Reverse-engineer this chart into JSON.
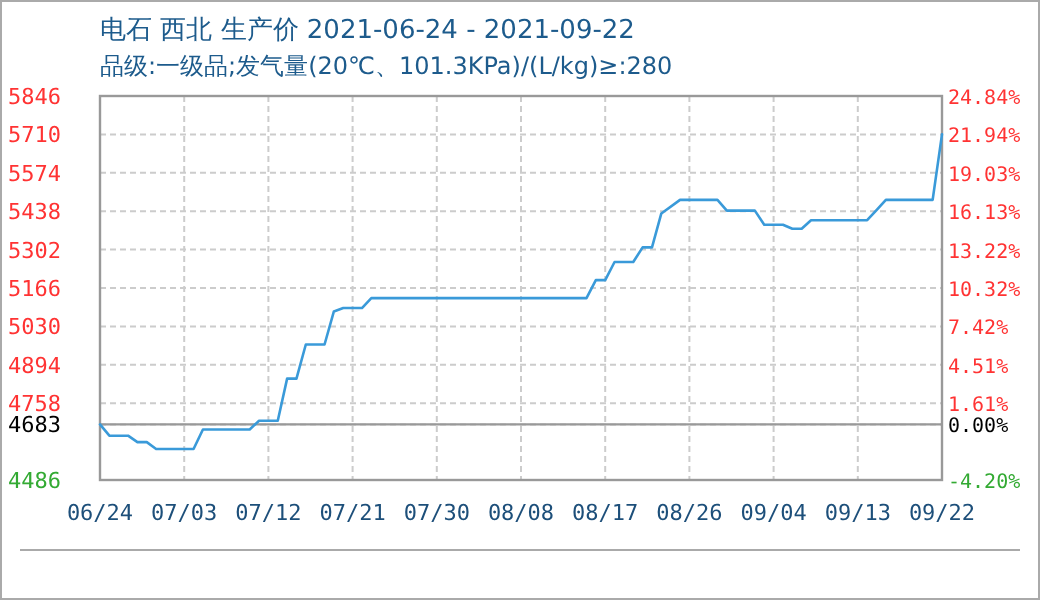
{
  "chart_data": {
    "type": "line",
    "title": "电石 西北 生产价 2021-06-24 - 2021-09-22",
    "subtitle": "品级:一级品;发气量(20℃、101.3KPa)/(L/kg)≥:280",
    "x": [
      "2021-06-24",
      "2021-06-25",
      "2021-06-27",
      "2021-06-28",
      "2021-06-29",
      "2021-06-30",
      "2021-07-04",
      "2021-07-05",
      "2021-07-10",
      "2021-07-11",
      "2021-07-13",
      "2021-07-14",
      "2021-07-15",
      "2021-07-16",
      "2021-07-18",
      "2021-07-19",
      "2021-07-20",
      "2021-07-22",
      "2021-07-23",
      "2021-08-15",
      "2021-08-16",
      "2021-08-17",
      "2021-08-18",
      "2021-08-20",
      "2021-08-21",
      "2021-08-22",
      "2021-08-23",
      "2021-08-25",
      "2021-08-29",
      "2021-08-30",
      "2021-09-02",
      "2021-09-03",
      "2021-09-05",
      "2021-09-06",
      "2021-09-07",
      "2021-09-08",
      "2021-09-14",
      "2021-09-15",
      "2021-09-16",
      "2021-09-21",
      "2021-09-22"
    ],
    "series": [
      {
        "color": "#3a9ad9",
        "values": [
          4683,
          4643,
          4643,
          4620,
          4620,
          4596,
          4596,
          4665,
          4665,
          4696,
          4696,
          4845,
          4845,
          4966,
          4966,
          5083,
          5095,
          5095,
          5130,
          5130,
          5194,
          5194,
          5258,
          5258,
          5310,
          5310,
          5430,
          5478,
          5478,
          5440,
          5440,
          5390,
          5390,
          5376,
          5376,
          5406,
          5406,
          5442,
          5478,
          5478,
          5710
        ]
      }
    ],
    "xlim": [
      "2021-06-24",
      "2021-09-22"
    ],
    "xticks": [
      {
        "value": "2021-06-24",
        "label": "06/24"
      },
      {
        "value": "2021-07-03",
        "label": "07/03"
      },
      {
        "value": "2021-07-12",
        "label": "07/12"
      },
      {
        "value": "2021-07-21",
        "label": "07/21"
      },
      {
        "value": "2021-07-30",
        "label": "07/30"
      },
      {
        "value": "2021-08-08",
        "label": "08/08"
      },
      {
        "value": "2021-08-17",
        "label": "08/17"
      },
      {
        "value": "2021-08-26",
        "label": "08/26"
      },
      {
        "value": "2021-09-04",
        "label": "09/04"
      },
      {
        "value": "2021-09-13",
        "label": "09/13"
      },
      {
        "value": "2021-09-22",
        "label": "09/22"
      }
    ],
    "ylim": [
      4486,
      5846
    ],
    "yticks": [
      4486,
      4683,
      4758,
      4894,
      5030,
      5166,
      5302,
      5438,
      5574,
      5710,
      5846
    ],
    "y2lim": [
      -4.2,
      24.84
    ],
    "y2ticks": [
      {
        "value": -4.2,
        "label": "-4.20%"
      },
      {
        "value": 0,
        "label": "0.00%"
      },
      {
        "value": 1.61,
        "label": "1.61%"
      },
      {
        "value": 4.51,
        "label": "4.51%"
      },
      {
        "value": 7.42,
        "label": "7.42%"
      },
      {
        "value": 10.32,
        "label": "10.32%"
      },
      {
        "value": 13.22,
        "label": "13.22%"
      },
      {
        "value": 16.13,
        "label": "16.13%"
      },
      {
        "value": 19.03,
        "label": "19.03%"
      },
      {
        "value": 21.94,
        "label": "21.94%"
      },
      {
        "value": 24.84,
        "label": "24.84%"
      }
    ],
    "ref_lines": [
      {
        "axis": "y",
        "value": 4683,
        "color": "#999999"
      }
    ],
    "grid": true,
    "line_style": "solid",
    "marker": "none"
  }
}
